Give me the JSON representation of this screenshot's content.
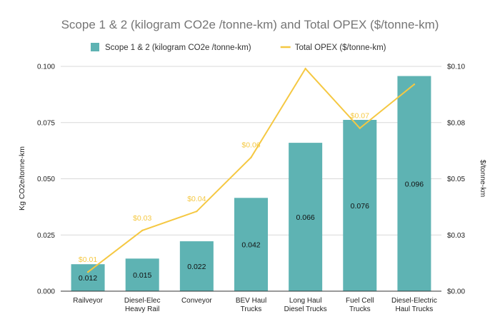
{
  "chart_data": {
    "type": "bar",
    "title": "Scope 1 & 2 (kilogram CO2e /tonne-km) and Total OPEX ($/tonne-km)",
    "categories": [
      [
        "Railveyor"
      ],
      [
        "Diesel-Elec",
        "Heavy Rail"
      ],
      [
        "Conveyor"
      ],
      [
        "BEV Haul",
        "Trucks"
      ],
      [
        "Long Haul",
        "Diesel Trucks"
      ],
      [
        "Fuel Cell",
        "Trucks"
      ],
      [
        "Diesel-Electric",
        "Haul Trucks"
      ]
    ],
    "series": [
      {
        "name": "Scope 1 & 2 (kilogram CO2e /tonne-km)",
        "type": "bar",
        "axis": "left",
        "color": "#5eb3b3",
        "values": [
          0.012,
          0.0145,
          0.0222,
          0.0415,
          0.066,
          0.0762,
          0.0957
        ],
        "data_labels": [
          "0.012",
          "0.015",
          "0.022",
          "0.042",
          "0.066",
          "0.076",
          "0.096"
        ]
      },
      {
        "name": "Total OPEX ($/tonne-km)",
        "type": "line",
        "axis": "right",
        "color": "#f5c842",
        "values": [
          0.0085,
          0.027,
          0.0355,
          0.0595,
          0.099,
          0.0725,
          0.092
        ],
        "data_labels": [
          "$0.01",
          "$0.03",
          "$0.04",
          "$0.06",
          "",
          "$0.07",
          ""
        ]
      }
    ],
    "y_left": {
      "label": "Kg CO2e/tonne-km",
      "ylim": [
        0,
        0.1
      ],
      "ticks": [
        0,
        0.025,
        0.05,
        0.075,
        0.1
      ],
      "tick_labels": [
        "0.000",
        "0.025",
        "0.050",
        "0.075",
        "0.100"
      ]
    },
    "y_right": {
      "label": "$/tonne-km",
      "ylim": [
        0,
        0.1
      ],
      "ticks": [
        0,
        0.025,
        0.05,
        0.075,
        0.1
      ],
      "tick_labels": [
        "$0.00",
        "$0.03",
        "$0.05",
        "$0.08",
        "$0.10"
      ]
    },
    "grid": true,
    "legend": "top-center"
  }
}
